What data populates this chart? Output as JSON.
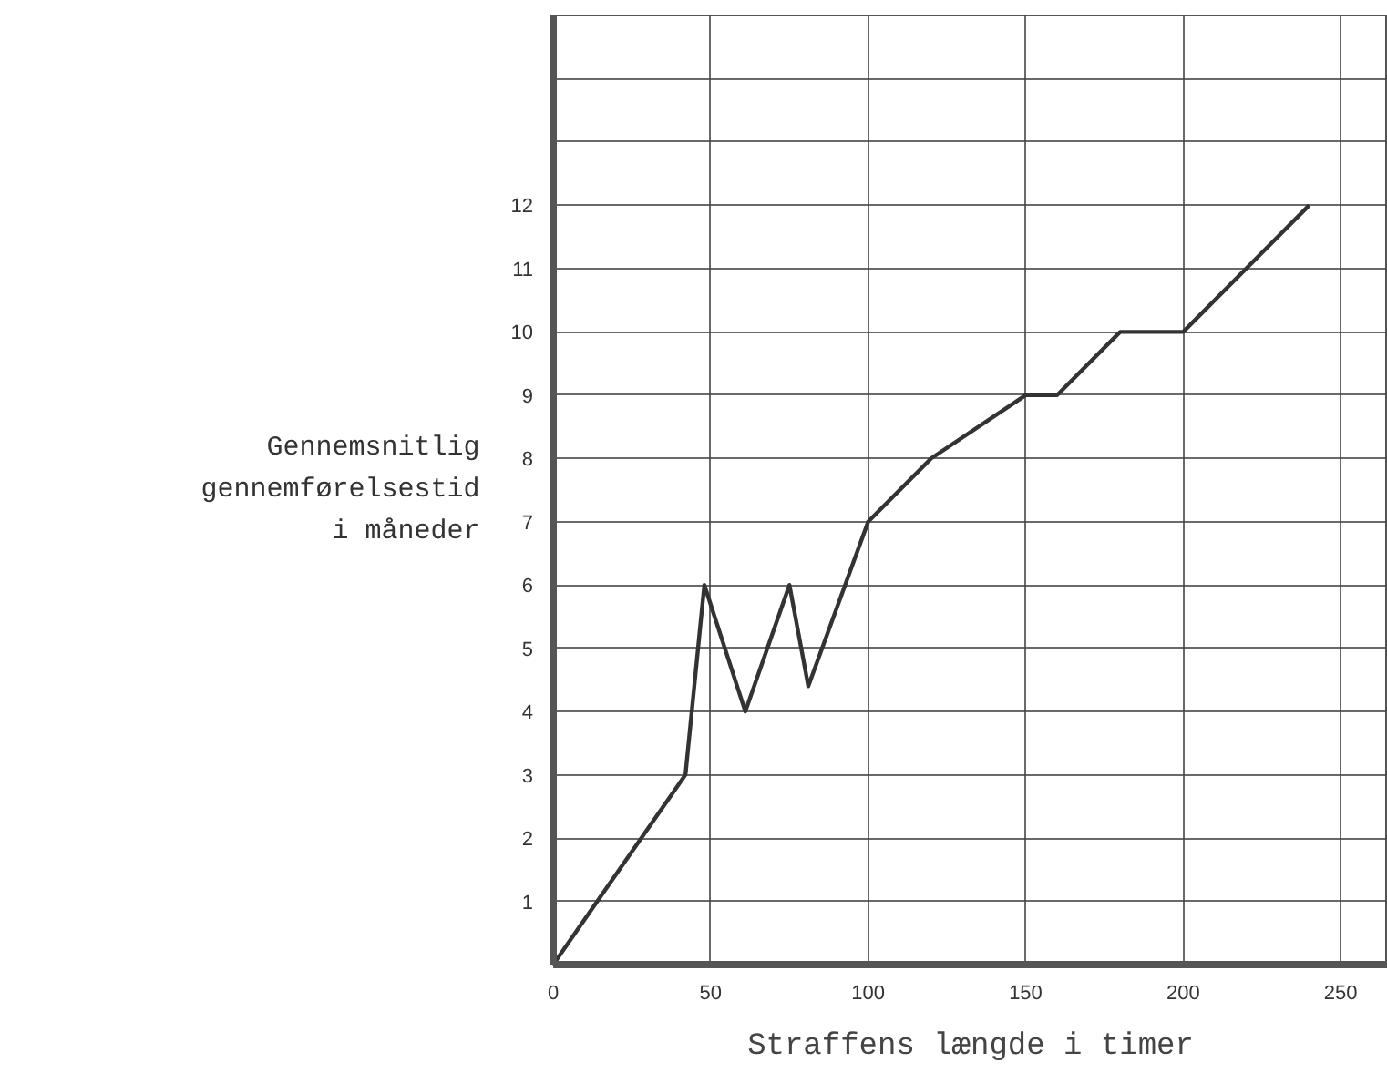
{
  "chart_data": {
    "type": "line",
    "xlabel": "Straffens længde i timer",
    "ylabel": "Gennemsnitlig gennemførelsestid i måneder",
    "x": [
      0,
      42,
      48,
      61,
      75,
      81,
      100,
      120,
      150,
      160,
      180,
      200,
      240
    ],
    "series": [
      {
        "color": "#333333",
        "values": [
          0,
          3,
          6,
          4,
          6,
          4.4,
          7,
          8,
          9,
          9,
          10,
          10,
          12
        ]
      }
    ],
    "xlim": [
      0,
      265
    ],
    "xticks": [
      0,
      50,
      100,
      150,
      200,
      250
    ],
    "ylim": [
      0,
      15
    ],
    "yticks": [
      1,
      2,
      3,
      4,
      5,
      6,
      7,
      8,
      9,
      10,
      11,
      12,
      {
        "value": 13,
        "label": null
      },
      {
        "value": 14,
        "label": null
      },
      {
        "value": 15,
        "label": null
      }
    ],
    "grid": true,
    "marker": "none",
    "line_style": "solid"
  }
}
